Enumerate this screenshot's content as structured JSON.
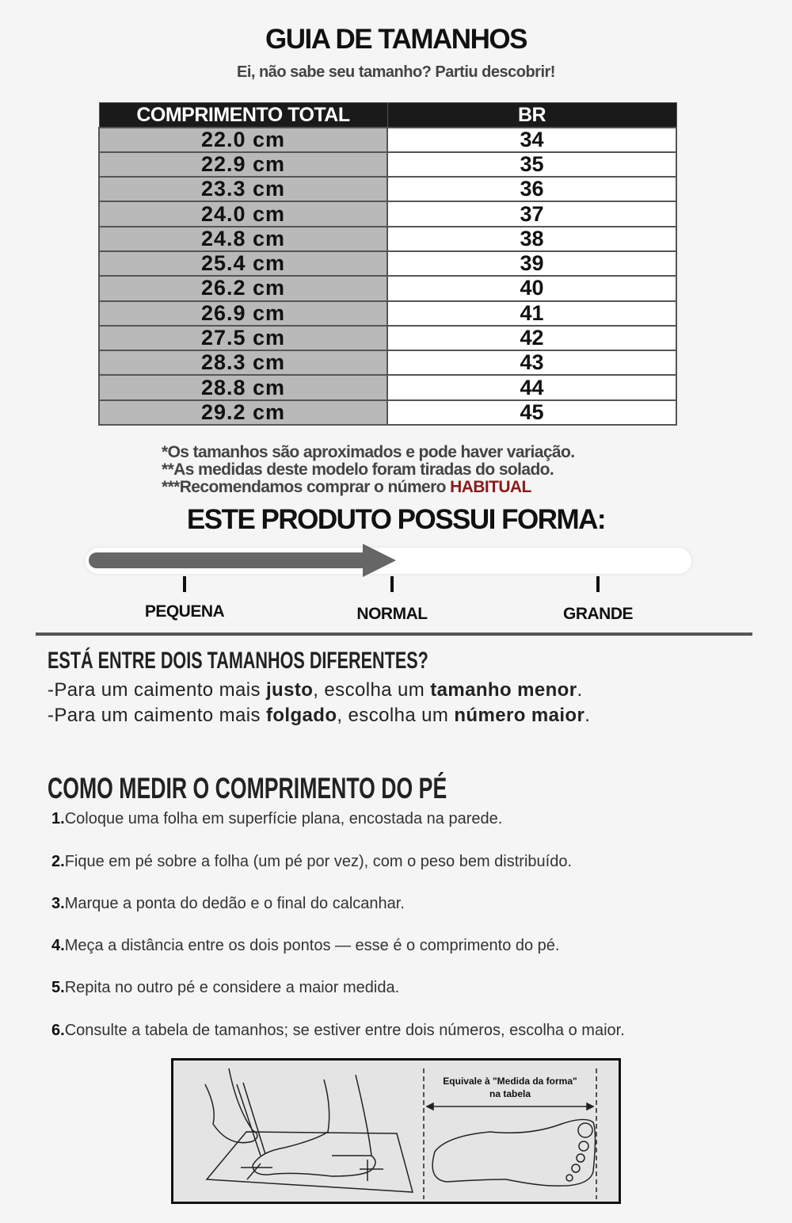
{
  "header": {
    "title": "GUIA DE TAMANHOS",
    "subtitle": "Ei, não sabe seu tamanho? Partiu descobrir!"
  },
  "table": {
    "columns": [
      "COMPRIMENTO TOTAL",
      "BR"
    ],
    "rows": [
      [
        "22.0 cm",
        "34"
      ],
      [
        "22.9 cm",
        "35"
      ],
      [
        "23.3 cm",
        "36"
      ],
      [
        "24.0 cm",
        "37"
      ],
      [
        "24.8 cm",
        "38"
      ],
      [
        "25.4 cm",
        "39"
      ],
      [
        "26.2 cm",
        "40"
      ],
      [
        "26.9 cm",
        "41"
      ],
      [
        "27.5 cm",
        "42"
      ],
      [
        "28.3 cm",
        "43"
      ],
      [
        "28.8 cm",
        "44"
      ],
      [
        "29.2 cm",
        "45"
      ]
    ]
  },
  "notes": {
    "n1": "*Os tamanhos são aproximados e pode haver variação.",
    "n2": "**As medidas deste modelo foram tiradas do solado.",
    "n3": "***Recomendamos comprar o número",
    "n3_highlight": "HABITUAL",
    "highlight_color": "#8b1a1a"
  },
  "fit": {
    "title": "ESTE PRODUTO POSSUI FORMA:",
    "labels": [
      "PEQUENA",
      "NORMAL",
      "GRANDE"
    ],
    "selected": "NORMAL",
    "level_percent": 50
  },
  "between": {
    "heading": "ESTÁ ENTRE DOIS TAMANHOS DIFERENTES?",
    "l1": {
      "a": "-Para um caimento mais ",
      "b": "justo",
      "c": ", escolha um ",
      "d": "tamanho menor",
      "e": "."
    },
    "l2": {
      "a": "-Para um caimento mais ",
      "b": "folgado",
      "c": ", escolha um ",
      "d": "número maior",
      "e": "."
    }
  },
  "measure": {
    "heading": "COMO MEDIR O COMPRIMENTO DO PÉ",
    "steps": [
      {
        "n": "1.",
        "t": "Coloque uma folha em superfície plana, encostada na parede."
      },
      {
        "n": "2.",
        "t": "Fique em pé sobre a folha (um pé por vez), com o peso bem distribuído."
      },
      {
        "n": "3.",
        "t": "Marque a ponta do dedão e o final do calcanhar."
      },
      {
        "n": "4.",
        "t": "Meça a distância entre os dois pontos — esse é o comprimento do pé."
      },
      {
        "n": "5.",
        "t": "Repita no outro pé e considere a maior medida."
      },
      {
        "n": "6.",
        "t": "Consulte a tabela de tamanhos; se estiver entre dois números, escolha o maior."
      }
    ]
  },
  "illustration": {
    "caption1": "Equivale à \"Medida da forma\"",
    "caption2": "na tabela"
  }
}
